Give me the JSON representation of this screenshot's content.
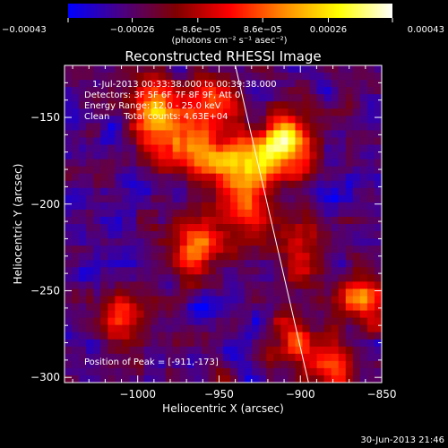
{
  "chart_data": {
    "type": "heatmap",
    "title": "Reconstructed RHESSI Image",
    "xlabel": "Heliocentric X (arcsec)",
    "ylabel": "Heliocentric Y (arcsec)",
    "xlim": [
      -1045,
      -850
    ],
    "ylim": [
      -303,
      -120
    ],
    "x_ticks": [
      -1000,
      -950,
      -900,
      -850
    ],
    "x_tick_labels": [
      "−1000",
      "−950",
      "−900",
      "−850"
    ],
    "y_ticks": [
      -150,
      -200,
      -250,
      -300
    ],
    "y_tick_labels": [
      "−150",
      "−200",
      "−250",
      "−300"
    ],
    "colorbar": {
      "range": [
        -0.00043,
        0.00043
      ],
      "tick_values": [
        -0.00043,
        -0.00026,
        -8.6e-05,
        8.6e-05,
        0.00026,
        0.00043
      ],
      "tick_labels": [
        "−0.00043",
        "−0.00026",
        "−8.6e−05",
        "8.6e−05",
        "0.00026",
        "0.00043"
      ],
      "label": "(photons cm⁻² s⁻¹ asec⁻²)",
      "colors": [
        "#0000ff",
        "#4b0082",
        "#800000",
        "#ff0000",
        "#ff8c00",
        "#ffff00",
        "#ffffff"
      ]
    },
    "annotations": {
      "time_range": "1-Jul-2013 00:33:38.000 to 00:39:38.000",
      "detectors": "Detectors: 3F 5F 6F 7F 8F 9F, Att 0",
      "energy_range": "Energy Range: 12.0 - 25.0 keV",
      "clean_counts": "Clean     Total counts: 4.63E+04",
      "peak_position": "Position of Peak = [-911,-173]"
    },
    "limb_line": {
      "x": [
        -940,
        -895
      ],
      "y": [
        -120,
        -303
      ]
    },
    "hot_spots": [
      {
        "x": -910,
        "y": -165,
        "intensity": 1.0
      },
      {
        "x": -935,
        "y": -180,
        "intensity": 0.75
      },
      {
        "x": -960,
        "y": -170,
        "intensity": 0.65
      },
      {
        "x": -985,
        "y": -160,
        "intensity": 0.6
      },
      {
        "x": -990,
        "y": -140,
        "intensity": 0.5
      },
      {
        "x": -955,
        "y": -140,
        "intensity": 0.55
      },
      {
        "x": -965,
        "y": -225,
        "intensity": 0.6
      },
      {
        "x": -930,
        "y": -205,
        "intensity": 0.5
      },
      {
        "x": -860,
        "y": -255,
        "intensity": 0.6
      },
      {
        "x": -900,
        "y": -280,
        "intensity": 0.5
      },
      {
        "x": -1010,
        "y": -265,
        "intensity": 0.45
      },
      {
        "x": -880,
        "y": -300,
        "intensity": 0.45
      },
      {
        "x": -900,
        "y": -225,
        "intensity": 0.4
      }
    ]
  },
  "footer": {
    "date": "30-Jun-2013 21:46"
  }
}
